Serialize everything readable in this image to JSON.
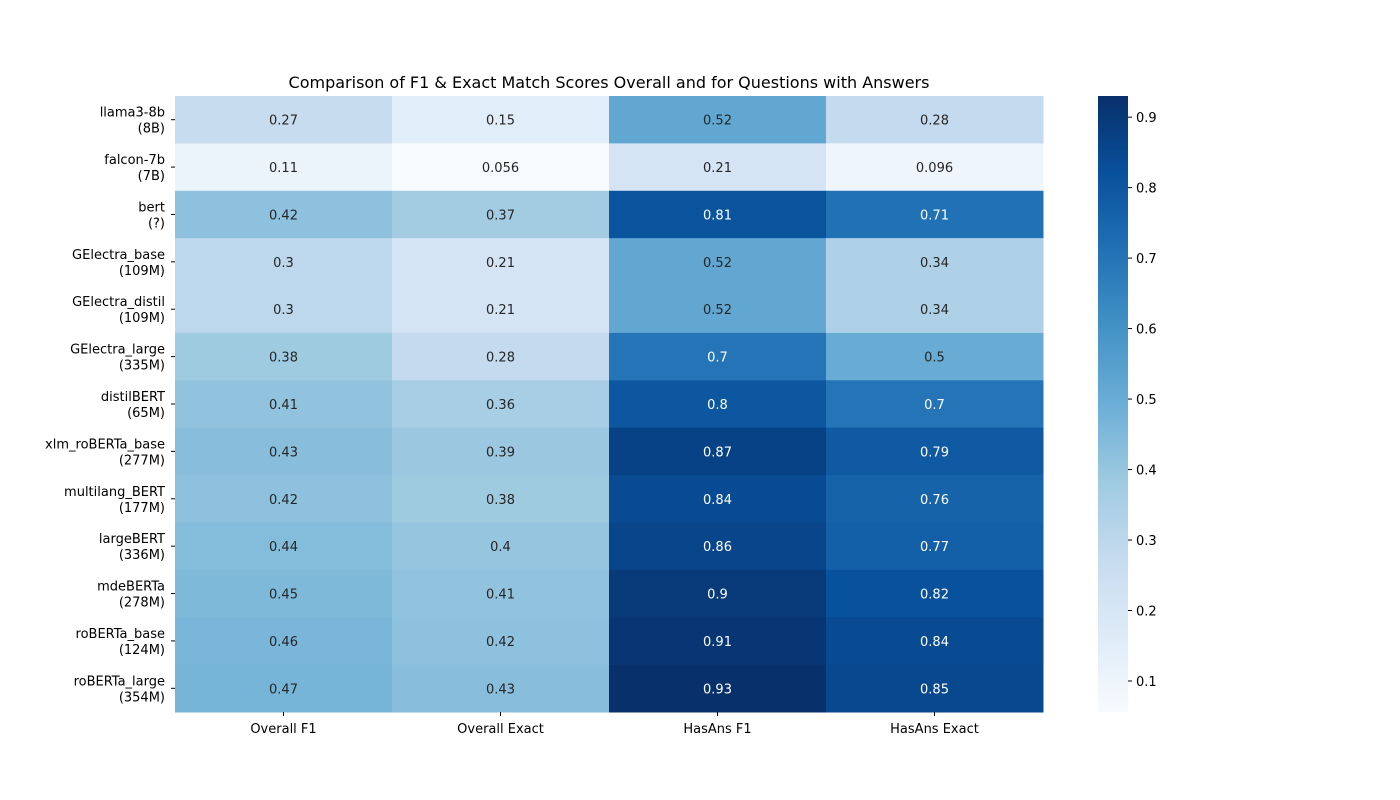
{
  "chart_data": {
    "type": "heatmap",
    "title": "Comparison of F1 & Exact Match Scores Overall and for Questions with Answers",
    "xlabel": "",
    "ylabel": "",
    "columns": [
      "Overall F1",
      "Overall Exact",
      "HasAns F1",
      "HasAns Exact"
    ],
    "rows": [
      {
        "name": "llama3-8b",
        "params": "(8B)"
      },
      {
        "name": "falcon-7b",
        "params": "(7B)"
      },
      {
        "name": "bert",
        "params": "(?)"
      },
      {
        "name": "GElectra_base",
        "params": "(109M)"
      },
      {
        "name": "GElectra_distil",
        "params": "(109M)"
      },
      {
        "name": "GElectra_large",
        "params": "(335M)"
      },
      {
        "name": "distilBERT",
        "params": "(65M)"
      },
      {
        "name": "xlm_roBERTa_base",
        "params": "(277M)"
      },
      {
        "name": "multilang_BERT",
        "params": "(177M)"
      },
      {
        "name": "largeBERT",
        "params": "(336M)"
      },
      {
        "name": "mdeBERTa",
        "params": "(278M)"
      },
      {
        "name": "roBERTa_base",
        "params": "(124M)"
      },
      {
        "name": "roBERTa_large",
        "params": "(354M)"
      }
    ],
    "values": [
      [
        0.27,
        0.15,
        0.52,
        0.28
      ],
      [
        0.11,
        0.056,
        0.21,
        0.096
      ],
      [
        0.42,
        0.37,
        0.81,
        0.71
      ],
      [
        0.3,
        0.21,
        0.52,
        0.34
      ],
      [
        0.3,
        0.21,
        0.52,
        0.34
      ],
      [
        0.38,
        0.28,
        0.7,
        0.5
      ],
      [
        0.41,
        0.36,
        0.8,
        0.7
      ],
      [
        0.43,
        0.39,
        0.87,
        0.79
      ],
      [
        0.42,
        0.38,
        0.84,
        0.76
      ],
      [
        0.44,
        0.4,
        0.86,
        0.77
      ],
      [
        0.45,
        0.41,
        0.9,
        0.82
      ],
      [
        0.46,
        0.42,
        0.91,
        0.84
      ],
      [
        0.47,
        0.43,
        0.93,
        0.85
      ]
    ],
    "colorbar": {
      "colormap": "Blues",
      "range": [
        0.056,
        0.93
      ],
      "ticks": [
        0.1,
        0.2,
        0.3,
        0.4,
        0.5,
        0.6,
        0.7,
        0.8,
        0.9
      ],
      "placement": "right"
    },
    "grid": false
  }
}
